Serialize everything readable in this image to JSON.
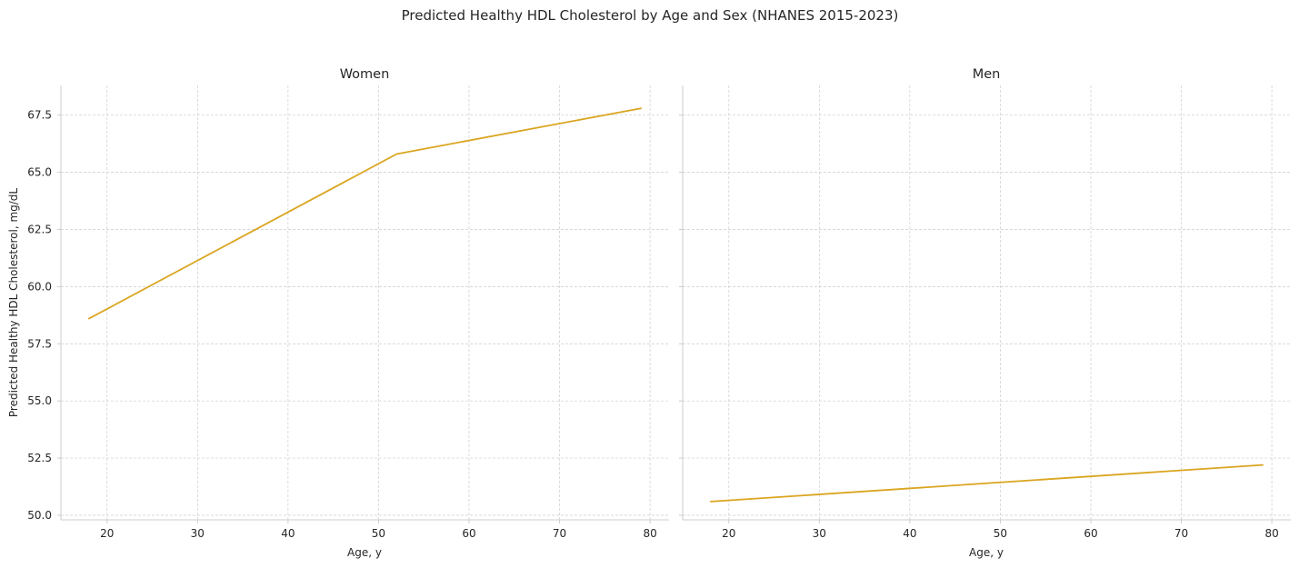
{
  "chart_data": {
    "type": "line",
    "title": "Predicted Healthy HDL Cholesterol by Age and Sex (NHANES 2015-2023)",
    "ylabel": "Predicted Healthy HDL Cholesterol, mg/dL",
    "xlabel": "Age, y",
    "shared_y": true,
    "grid": true,
    "ylim": [
      49.8,
      68.8
    ],
    "yticks": [
      50.0,
      52.5,
      55.0,
      57.5,
      60.0,
      62.5,
      65.0,
      67.5
    ],
    "ytick_labels": [
      "50.0",
      "52.5",
      "55.0",
      "57.5",
      "60.0",
      "62.5",
      "65.0",
      "67.5"
    ],
    "xlim": [
      14.9,
      82.1
    ],
    "xticks": [
      20,
      30,
      40,
      50,
      60,
      70,
      80
    ],
    "xtick_labels": [
      "20",
      "30",
      "40",
      "50",
      "60",
      "70",
      "80"
    ],
    "line_color": "#DAA520",
    "panels": [
      {
        "title": "Women",
        "x": [
          18,
          52,
          79
        ],
        "y": [
          58.6,
          65.8,
          67.8
        ]
      },
      {
        "title": "Men",
        "x": [
          18,
          79
        ],
        "y": [
          50.6,
          52.2
        ]
      }
    ]
  }
}
